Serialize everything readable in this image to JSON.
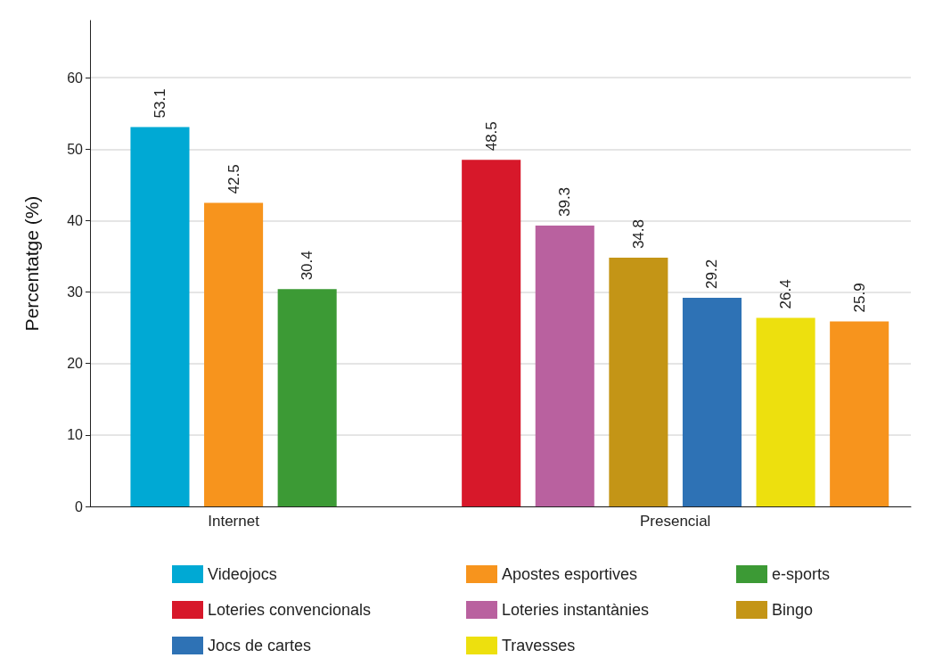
{
  "chart_data": {
    "type": "bar",
    "ylabel": "Percentatge (%)",
    "categories": [
      "Internet",
      "Presencial"
    ],
    "series": [
      {
        "name": "Videojocs",
        "color": "#00a9d4",
        "values": [
          53.1,
          null
        ]
      },
      {
        "name": "Apostes esportives",
        "color": "#f7941d",
        "values": [
          42.5,
          null
        ]
      },
      {
        "name": "e-sports",
        "color": "#3c9a35",
        "values": [
          30.4,
          null
        ]
      },
      {
        "name": "Loteries convencionals",
        "color": "#d7182a",
        "values": [
          null,
          48.5
        ]
      },
      {
        "name": "Loteries instantànies",
        "color": "#b9619f",
        "values": [
          null,
          39.3
        ]
      },
      {
        "name": "Bingo",
        "color": "#c49516",
        "values": [
          null,
          34.8
        ]
      },
      {
        "name": "Jocs de cartes",
        "color": "#2e72b5",
        "values": [
          null,
          29.2
        ]
      },
      {
        "name": "Travesses",
        "color": "#ede00e",
        "values": [
          null,
          26.4
        ]
      },
      {
        "color": "#f7941d",
        "values": [
          null,
          25.9
        ]
      }
    ],
    "ylim": [
      0,
      68
    ],
    "yticks": [
      0,
      10,
      20,
      30,
      40,
      50,
      60
    ],
    "grid": "y",
    "legend": "bottom",
    "data_labels": true
  }
}
